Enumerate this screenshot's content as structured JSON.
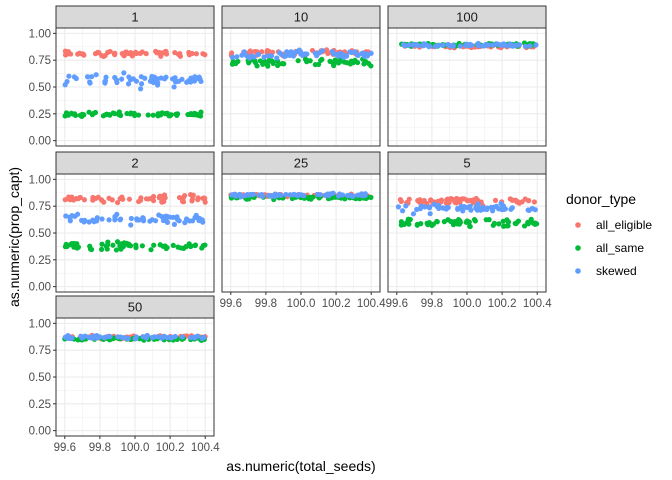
{
  "chart_data": {
    "type": "scatter",
    "facet_var": "n_donors",
    "facets": [
      {
        "label": "1",
        "means": {
          "all_eligible": 0.81,
          "all_same": 0.245,
          "skewed": 0.57
        },
        "spreads": {
          "all_eligible": 0.03,
          "all_same": 0.02,
          "skewed": 0.06
        }
      },
      {
        "label": "10",
        "means": {
          "all_eligible": 0.82,
          "all_same": 0.73,
          "skewed": 0.8
        },
        "spreads": {
          "all_eligible": 0.03,
          "all_same": 0.04,
          "skewed": 0.04
        }
      },
      {
        "label": "100",
        "means": {
          "all_eligible": 0.88,
          "all_same": 0.895,
          "skewed": 0.89
        },
        "spreads": {
          "all_eligible": 0.015,
          "all_same": 0.015,
          "skewed": 0.015
        }
      },
      {
        "label": "2",
        "means": {
          "all_eligible": 0.82,
          "all_same": 0.38,
          "skewed": 0.63
        },
        "spreads": {
          "all_eligible": 0.03,
          "all_same": 0.04,
          "skewed": 0.05
        }
      },
      {
        "label": "25",
        "means": {
          "all_eligible": 0.85,
          "all_same": 0.83,
          "skewed": 0.855
        },
        "spreads": {
          "all_eligible": 0.015,
          "all_same": 0.015,
          "skewed": 0.015
        }
      },
      {
        "label": "5",
        "means": {
          "all_eligible": 0.8,
          "all_same": 0.6,
          "skewed": 0.73
        },
        "spreads": {
          "all_eligible": 0.03,
          "all_same": 0.04,
          "skewed": 0.04
        }
      },
      {
        "label": "50",
        "means": {
          "all_eligible": 0.87,
          "all_same": 0.855,
          "skewed": 0.87
        },
        "spreads": {
          "all_eligible": 0.015,
          "all_same": 0.015,
          "skewed": 0.015
        }
      }
    ],
    "series": [
      {
        "name": "all_eligible",
        "color": "#F8766D"
      },
      {
        "name": "all_same",
        "color": "#00BA38"
      },
      {
        "name": "skewed",
        "color": "#619CFF"
      }
    ],
    "points_per_series": 60,
    "x_center": 100.0,
    "x_jitter": 0.4,
    "xlim": [
      99.55,
      100.45
    ],
    "ylim": [
      -0.05,
      1.05
    ],
    "x_ticks": [
      "99.6",
      "99.8",
      "100.0",
      "100.2",
      "100.4"
    ],
    "y_ticks": [
      "0.00",
      "0.25",
      "0.50",
      "0.75",
      "1.00"
    ],
    "xlabel": "as.numeric(total_seeds)",
    "ylabel": "as.numeric(prop_capt)",
    "legend_title": "donor_type",
    "legend_position": "right",
    "grid": true,
    "theme": "bw"
  }
}
